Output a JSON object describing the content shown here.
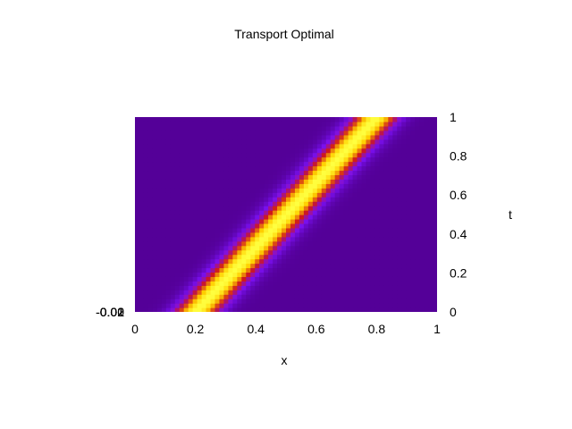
{
  "chart_data": {
    "type": "heatmap",
    "title": "Transport Optimal",
    "xlabel": "x",
    "ylabel": "t",
    "xlim": [
      0,
      1
    ],
    "ylim": [
      0,
      1
    ],
    "x_ticks": [
      "0",
      "0.2",
      "0.4",
      "0.6",
      "0.8",
      "1"
    ],
    "y_ticks": [
      "0",
      "0.2",
      "0.4",
      "0.6",
      "0.8",
      "1"
    ],
    "y_axis_side": "right",
    "overlapped_left_labels": [
      "-0.01",
      "-0.02",
      "0.01",
      "0.02",
      "0"
    ],
    "density": {
      "shape": "gaussian band moving linearly in time",
      "center_at_t0": 0.2,
      "center_at_t1": 0.8,
      "width": 0.07
    },
    "colormap": [
      "#540098",
      "#7a10f0",
      "#d0181a",
      "#ffd000",
      "#ffff40"
    ],
    "grid": false,
    "legend": "none"
  }
}
